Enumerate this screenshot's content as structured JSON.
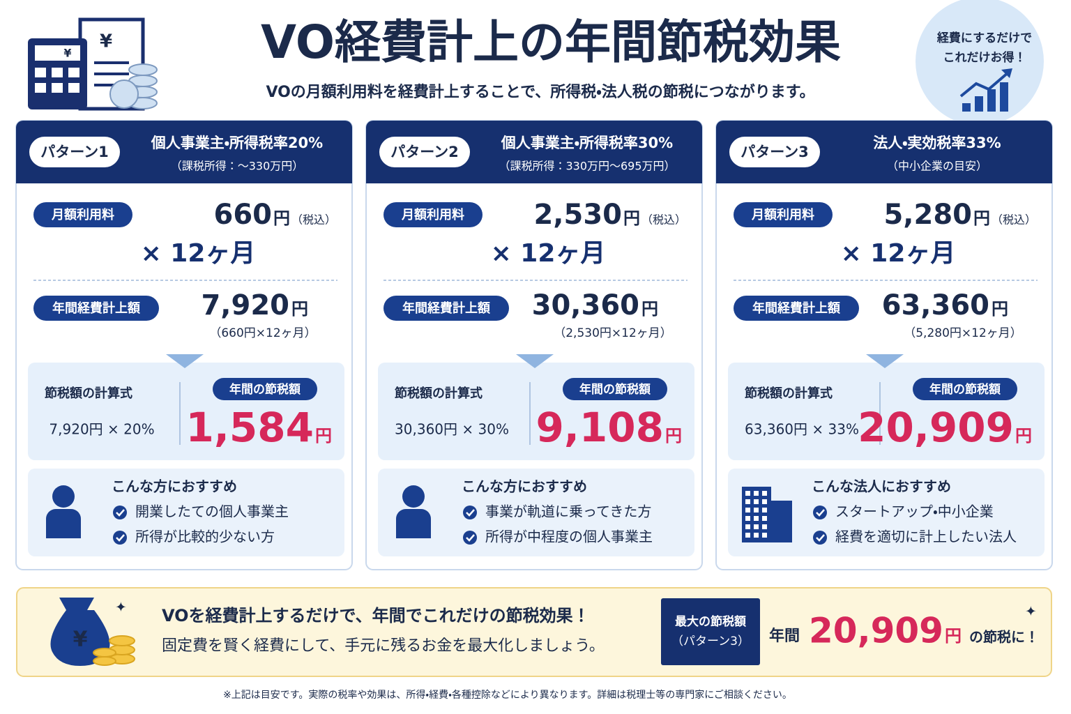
{
  "header": {
    "title": "VO経費計上の年間節税効果",
    "subtitle": "VOの月額利用料を経費計上することで、所得税・法人税の節税につながります。",
    "badge": [
      "経費にするだけで",
      "これだけお得！"
    ]
  },
  "patterns": [
    {
      "label": "パターン1",
      "title": "個人事業主・所得税率20%",
      "note": "（課税所得：〜330万円）",
      "monthly_label": "月額利用料",
      "monthly_amount": "660",
      "yen": "円",
      "tax_included": "（税込）",
      "multiplier": "× 12ヶ月",
      "annual_label": "年間経費計上額",
      "annual_amount": "7,920",
      "annual_note": "（660円×12ヶ月）",
      "formula_label": "節税額の計算式",
      "formula": "7,920円 × 20%",
      "saving_label": "年間の節税額",
      "saving_amount": "1,584",
      "recommend_title": "こんな方におすすめ",
      "recommend_items": [
        "開業したての個人事業主",
        "所得が比較的少ない方"
      ]
    },
    {
      "label": "パターン2",
      "title": "個人事業主・所得税率30%",
      "note": "（課税所得：330万円〜695万円）",
      "monthly_label": "月額利用料",
      "monthly_amount": "2,530",
      "yen": "円",
      "tax_included": "（税込）",
      "multiplier": "× 12ヶ月",
      "annual_label": "年間経費計上額",
      "annual_amount": "30,360",
      "annual_note": "（2,530円×12ヶ月）",
      "formula_label": "節税額の計算式",
      "formula": "30,360円 × 30%",
      "saving_label": "年間の節税額",
      "saving_amount": "9,108",
      "recommend_title": "こんな方におすすめ",
      "recommend_items": [
        "事業が軌道に乗ってきた方",
        "所得が中程度の個人事業主"
      ]
    },
    {
      "label": "パターン3",
      "title": "法人・実効税率33%",
      "note": "（中小企業の目安）",
      "monthly_label": "月額利用料",
      "monthly_amount": "5,280",
      "yen": "円",
      "tax_included": "（税込）",
      "multiplier": "× 12ヶ月",
      "annual_label": "年間経費計上額",
      "annual_amount": "63,360",
      "annual_note": "（5,280円×12ヶ月）",
      "formula_label": "節税額の計算式",
      "formula": "63,360円 × 33%",
      "saving_label": "年間の節税額",
      "saving_amount": "20,909",
      "recommend_title": "こんな法人におすすめ",
      "recommend_items": [
        "スタートアップ・中小企業",
        "経費を適切に計上したい法人"
      ]
    }
  ],
  "banner": {
    "headline": "VOを経費計上するだけで、年間でこれだけの節税効果！",
    "subline": "固定費を賢く経費にして、手元に残るお金を最大化しましょう。",
    "max_label": [
      "最大の節税額",
      "（パターン3）"
    ],
    "prefix": "年間",
    "amount": "20,909",
    "unit": "円",
    "suffix": "の節税に！"
  },
  "footnote": "※上記は目安です。実際の税率や効果は、所得・経費・各種控除などにより異なります。詳細は税理士等の専門家にご相談ください。"
}
